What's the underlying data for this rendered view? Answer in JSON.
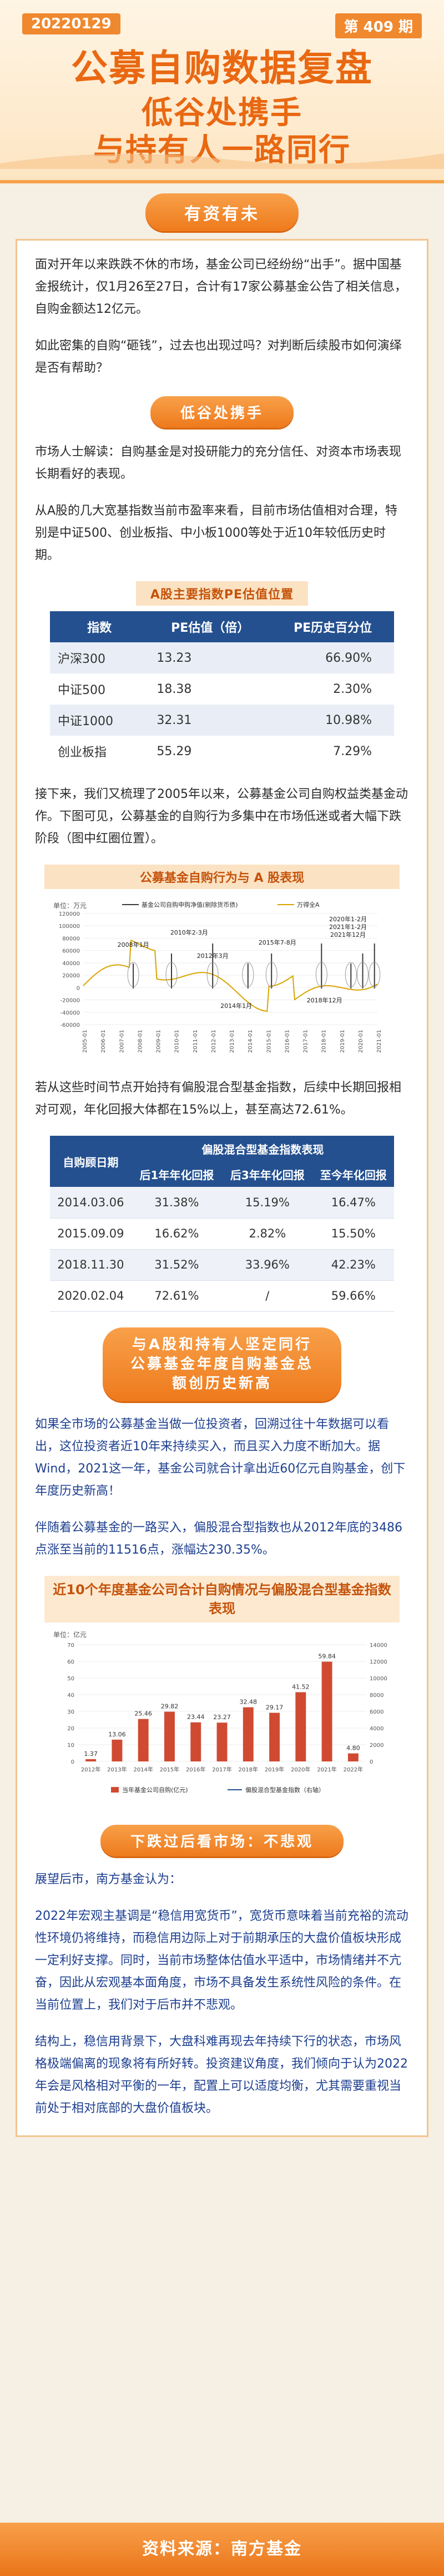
{
  "header": {
    "date": "20220129",
    "issue": "第 409 期",
    "title": "公募自购数据复盘",
    "subtitle_1": "低谷处携手",
    "subtitle_2": "与持有人一路同行"
  },
  "sections": {
    "s1": "有资有未",
    "s2": "低谷处携手",
    "s3": "与A股和持有人坚定同行\n公募基金年度自购基金总\n额创历史新高",
    "s4": "下跌过后看市场：不悲观"
  },
  "paragraphs": {
    "p1": "面对开年以来跌跌不休的市场，基金公司已经纷纷“出手”。据中国基金报统计，仅1月26至27日，合计有17家公募基金公告了相关信息，自购金额达12亿元。",
    "p2": "如此密集的自购“砸钱”，过去也出现过吗？对判断后续股市如何演绎是否有帮助？",
    "p3": "市场人士解读：自购基金是对投研能力的充分信任、对资本市场表现长期看好的表现。",
    "p4": "从A股的几大宽基指数当前市盈率来看，目前市场估值相对合理，特别是中证500、创业板指、中小板1000等处于近10年较低历史时期。",
    "p5": "接下来，我们又梳理了2005年以来，公募基金公司自购权益类基金动作。下图可见，公募基金的自购行为多集中在市场低迷或者大幅下跌阶段（图中红圈位置）。",
    "p6": "若从这些时间节点开始持有偏股混合型基金指数，后续中长期回报相对可观，年化回报大体都在15%以上，甚至高达72.61%。",
    "p7": "如果全市场的公募基金当做一位投资者，回溯过往十年数据可以看出，这位投资者近10年来持续买入，而且买入力度不断加大。据Wind，2021这一年，基金公司就合计拿出近60亿元自购基金，创下年度历史新高！",
    "p8": "伴随着公募基金的一路买入，偏股混合型指数也从2012年底的3486点涨至当前的11516点，涨幅达230.35%。",
    "p9": "展望后市，南方基金认为：",
    "p10": "2022年宏观主基调是“稳信用宽货币”，宽货币意味着当前充裕的流动性环境仍将维持，而稳信用边际上对于前期承压的大盘价值板块形成一定利好支撑。同时，当前市场整体估值水平适中，市场情绪并不亢奋，因此从宏观基本面角度，市场不具备发生系统性风险的条件。在当前位置上，我们对于后市并不悲观。",
    "p11": "结构上，稳信用背景下，大盘科难再现去年持续下行的状态，市场风格极端偏离的现象将有所好转。投资建议角度，我们倾向于认为2022年会是风格相对平衡的一年，配置上可以适度均衡，尤其需要重视当前处于相对底部的大盘价值板块。"
  },
  "pe_table": {
    "title": "A股主要指数PE估值位置",
    "headers": [
      "指数",
      "PE估值（倍）",
      "PE历史百分位"
    ],
    "rows": [
      [
        "沪深300",
        "13.23",
        "66.90%"
      ],
      [
        "中证500",
        "18.38",
        "2.30%"
      ],
      [
        "中证1000",
        "32.31",
        "10.98%"
      ],
      [
        "创业板指",
        "55.29",
        "7.29%"
      ]
    ]
  },
  "index_table": {
    "header_main": "偏股混合型基金指数表现",
    "headers": [
      "自购顾日期",
      "后1年年化回报",
      "后3年年化回报",
      "至今年化回报"
    ],
    "rows": [
      [
        "2014.03.06",
        "31.38%",
        "15.19%",
        "16.47%"
      ],
      [
        "2015.09.09",
        "16.62%",
        "2.82%",
        "15.50%"
      ],
      [
        "2018.11.30",
        "31.52%",
        "33.96%",
        "42.23%"
      ],
      [
        "2020.02.04",
        "72.61%",
        "/",
        "59.66%"
      ]
    ]
  },
  "chart_data": [
    {
      "type": "line",
      "title": "公募基金自购行为与 A 股表现",
      "unit_label": "单位：万元",
      "legend": [
        "基金公司自购申购净值(剔除货币债)",
        "万得全A"
      ],
      "x": [
        "2005-01",
        "2006-01",
        "2007-01",
        "2008-01",
        "2009-01",
        "2010-01",
        "2011-01",
        "2012-01",
        "2013-01",
        "2014-01",
        "2015-01",
        "2016-01",
        "2017-01",
        "2018-01",
        "2019-01",
        "2020-01",
        "2021-01"
      ],
      "annotations": [
        "2008年1月",
        "2010年2-3月",
        "2012年3月",
        "2014年1月",
        "2015年7-8月",
        "2018年12月",
        "2020年1-2月",
        "2021年1-2月",
        "2021年12月"
      ],
      "y_ticks": [
        "-60000",
        "-40000",
        "-20000",
        "0",
        "20000",
        "40000",
        "60000",
        "80000",
        "100000",
        "120000"
      ]
    },
    {
      "type": "bar",
      "title": "近10个年度基金公司合计自购情况与偏股混合型基金指数表现",
      "unit_label": "单位：亿元",
      "categories": [
        "2012年",
        "2013年",
        "2014年",
        "2015年",
        "2016年",
        "2017年",
        "2018年",
        "2019年",
        "2020年",
        "2021年",
        "2022年"
      ],
      "values": [
        1.37,
        13.06,
        25.46,
        29.82,
        23.44,
        23.27,
        32.48,
        29.17,
        41.52,
        59.84,
        4.8
      ],
      "series": [
        {
          "name": "当年基金公司自购(亿元)",
          "values": [
            1.37,
            13.06,
            25.46,
            29.82,
            23.44,
            23.27,
            32.48,
            29.17,
            41.52,
            59.84,
            4.8
          ]
        }
      ],
      "line_series": {
        "name": "偏股混合型基金指数（右轴）"
      },
      "ylim": [
        0,
        70
      ],
      "y2lim": [
        0,
        14000
      ]
    }
  ],
  "footer": {
    "source": "资料来源：南方基金"
  },
  "colors": {
    "accent": "#ee7a1c",
    "navy": "#24508f",
    "bar": "#d04a32"
  }
}
